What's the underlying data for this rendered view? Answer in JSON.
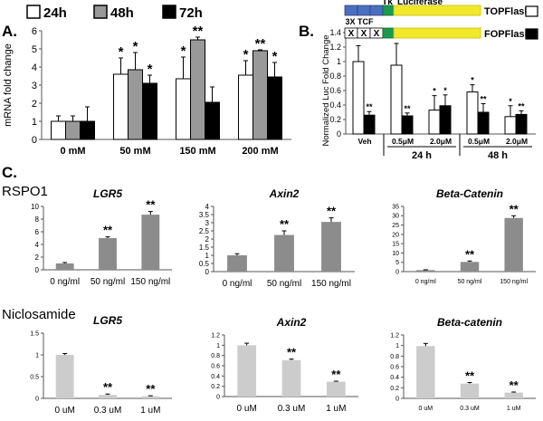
{
  "panels": [
    {
      "id": "A",
      "label": "A."
    },
    {
      "id": "B",
      "label": "B."
    },
    {
      "id": "C",
      "label": "C."
    }
  ],
  "chart_data": [
    {
      "id": "A",
      "type": "bar",
      "ylabel": "mRNA fold change",
      "ylim": [
        0,
        6
      ],
      "ticks": [
        "0",
        "1",
        "2",
        "3",
        "4",
        "5",
        "6"
      ],
      "categories": [
        "0 mM",
        "50 mM",
        "150 mM",
        "200 mM"
      ],
      "series": [
        {
          "name": "24h",
          "color": "#ffffff",
          "values": [
            1.0,
            3.6,
            3.35,
            3.55
          ],
          "errors": [
            0.3,
            0.9,
            1.2,
            0.8
          ],
          "stars": [
            "",
            "*",
            "*",
            "*"
          ]
        },
        {
          "name": "48h",
          "color": "#999999",
          "values": [
            1.0,
            3.85,
            5.5,
            4.9
          ],
          "errors": [
            0.3,
            0.95,
            0.15,
            0.05
          ],
          "stars": [
            "",
            "*",
            "**",
            "**"
          ]
        },
        {
          "name": "72h",
          "color": "#000000",
          "values": [
            1.0,
            3.1,
            2.05,
            3.45
          ],
          "errors": [
            0.8,
            0.45,
            0.85,
            0.8
          ],
          "stars": [
            "",
            "*",
            "",
            "*"
          ]
        }
      ]
    },
    {
      "id": "B",
      "type": "bar",
      "ylabel": "Normalized Luc Fold Change",
      "ylim": [
        0,
        1.4
      ],
      "ticks": [
        "0",
        "0.2",
        "0.4",
        "0.6",
        "0.8",
        "1",
        "1.2",
        "1.4"
      ],
      "categories": [
        "Veh",
        "0.5μM",
        "2.0μM",
        "0.5μM",
        "2.0μM"
      ],
      "groups": [
        "24 h",
        "48 h"
      ],
      "series": [
        {
          "name": "TOPFlash",
          "color": "#ffffff",
          "values": [
            1.0,
            0.95,
            0.33,
            0.58,
            0.24
          ],
          "errors": [
            0.22,
            0.3,
            0.2,
            0.1,
            0.15
          ],
          "stars": [
            "",
            "",
            "*",
            "*",
            "*"
          ]
        },
        {
          "name": "FOPFlash",
          "color": "#000000",
          "values": [
            0.26,
            0.25,
            0.39,
            0.3,
            0.27
          ],
          "errors": [
            0.05,
            0.04,
            0.15,
            0.12,
            0.05
          ],
          "stars": [
            "**",
            "**",
            "*",
            "**",
            "**"
          ]
        }
      ],
      "construct": {
        "tk": "Tk",
        "luciferase": "Luciferase",
        "tcf": "3X TCF",
        "mut": "X"
      }
    },
    {
      "id": "C1",
      "type": "bar",
      "title": "LGR5",
      "ylim": [
        0,
        10
      ],
      "ticks": [
        "0",
        "2",
        "4",
        "6",
        "8",
        "10"
      ],
      "categories": [
        "0 ng/ml",
        "50 ng/ml",
        "150 ng/ml"
      ],
      "values": [
        1.0,
        5.0,
        8.7
      ],
      "errors": [
        0.15,
        0.2,
        0.5
      ],
      "stars": [
        "",
        "**",
        "**"
      ],
      "color": "#8c8c8c"
    },
    {
      "id": "C2",
      "type": "bar",
      "title": "Axin2",
      "ylim": [
        0,
        4
      ],
      "ticks": [
        "0",
        "0.5",
        "1",
        "1.5",
        "2",
        "2.5",
        "3",
        "3.5",
        "4"
      ],
      "categories": [
        "0 ng/ml",
        "50 ng/ml",
        "150 ng/ml"
      ],
      "values": [
        1.0,
        2.25,
        3.05
      ],
      "errors": [
        0.1,
        0.25,
        0.25
      ],
      "stars": [
        "",
        "**",
        "**"
      ],
      "color": "#8c8c8c"
    },
    {
      "id": "C3",
      "type": "bar",
      "title": "Beta-Catenin",
      "ylim": [
        0,
        35
      ],
      "ticks": [
        "0",
        "5",
        "10",
        "15",
        "20",
        "25",
        "30",
        "35"
      ],
      "categories": [
        "0 ng/ml",
        "50 ng/ml",
        "150 ng/ml"
      ],
      "values": [
        0.8,
        5.2,
        28.8
      ],
      "errors": [
        0.2,
        0.5,
        1.2
      ],
      "stars": [
        "",
        "**",
        "**"
      ],
      "color": "#8c8c8c"
    },
    {
      "id": "C4",
      "type": "bar",
      "title": "LGR5",
      "ylim": [
        0,
        1.5
      ],
      "ticks": [
        "0",
        "0.5",
        "1",
        "1.5"
      ],
      "categories": [
        "0 uM",
        "0.3 uM",
        "1 uM"
      ],
      "values": [
        1.0,
        0.08,
        0.05
      ],
      "errors": [
        0.03,
        0.02,
        0.01
      ],
      "stars": [
        "",
        "**",
        "**"
      ],
      "color": "#cccccc"
    },
    {
      "id": "C5",
      "type": "bar",
      "title": "Axin2",
      "ylim": [
        0,
        1.2
      ],
      "ticks": [
        "0",
        "0.2",
        "0.4",
        "0.6",
        "0.8",
        "1",
        "1.2"
      ],
      "categories": [
        "0 uM",
        "0.3 uM",
        "1 uM"
      ],
      "values": [
        1.0,
        0.71,
        0.29
      ],
      "errors": [
        0.04,
        0.02,
        0.01
      ],
      "stars": [
        "",
        "**",
        "**"
      ],
      "color": "#cccccc"
    },
    {
      "id": "C6",
      "type": "bar",
      "title": "Beta-catenin",
      "ylim": [
        0,
        1.2
      ],
      "ticks": [
        "0",
        "0.2",
        "0.4",
        "0.6",
        "0.8",
        "1",
        "1.2"
      ],
      "categories": [
        "0 uM",
        "0.3 uM",
        "1 uM"
      ],
      "values": [
        0.99,
        0.28,
        0.11
      ],
      "errors": [
        0.05,
        0.02,
        0.01
      ],
      "stars": [
        "",
        "**",
        "**"
      ],
      "color": "#cccccc"
    }
  ],
  "row_labels": {
    "rspo": "RSPO1",
    "niclosamide": "Niclosamide"
  }
}
